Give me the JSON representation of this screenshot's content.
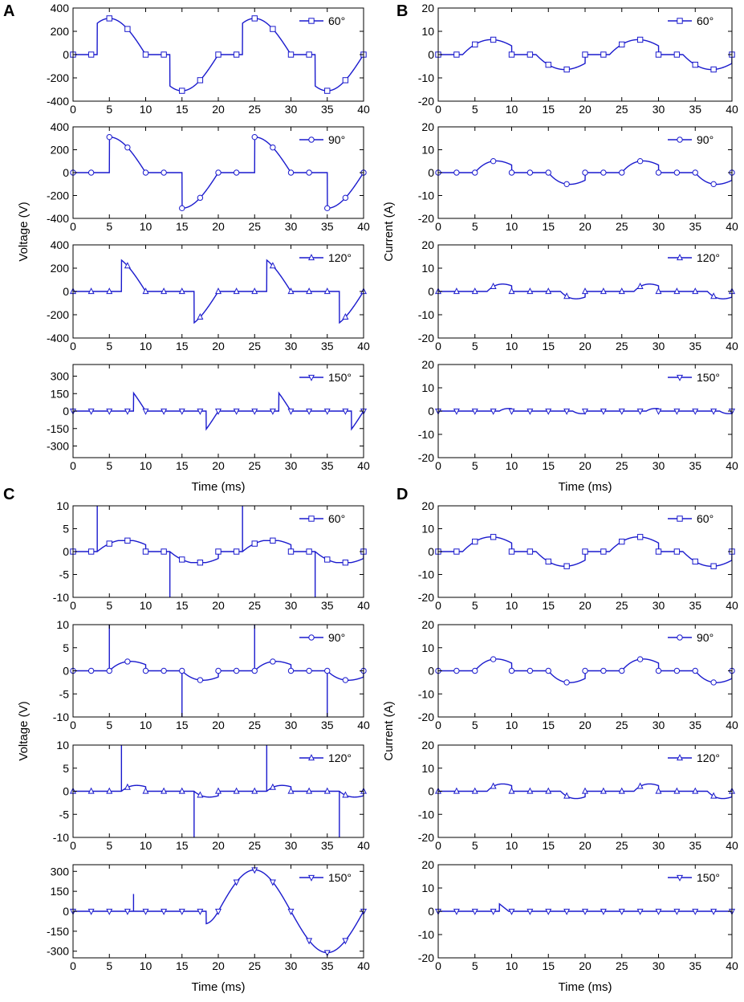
{
  "colors": {
    "series": "#1a1acd",
    "marker_fill": "#ffffff",
    "axis": "#000000"
  },
  "chart_data": [
    {
      "panel": "A",
      "type": "line",
      "quantity": "voltage",
      "column": "left",
      "ylabel": "Voltage (V)",
      "xlabel": "Time (ms)",
      "subplots": [
        {
          "legend": "60°",
          "marker": "square",
          "alpha": 60,
          "kind": "thyristor",
          "ylim": [
            -400,
            400
          ],
          "yticks": [
            -400,
            -200,
            0,
            200,
            400
          ],
          "xlim": [
            0,
            40
          ],
          "xticks": [
            0,
            5,
            10,
            15,
            20,
            25,
            30,
            35,
            40
          ]
        },
        {
          "legend": "90°",
          "marker": "circle",
          "alpha": 90,
          "kind": "thyristor",
          "ylim": [
            -400,
            400
          ],
          "yticks": [
            -400,
            -200,
            0,
            200,
            400
          ],
          "xlim": [
            0,
            40
          ],
          "xticks": [
            0,
            5,
            10,
            15,
            20,
            25,
            30,
            35,
            40
          ]
        },
        {
          "legend": "120°",
          "marker": "triangle-up",
          "alpha": 120,
          "kind": "thyristor",
          "ylim": [
            -400,
            400
          ],
          "yticks": [
            -400,
            -200,
            0,
            200,
            400
          ],
          "xlim": [
            0,
            40
          ],
          "xticks": [
            0,
            5,
            10,
            15,
            20,
            25,
            30,
            35,
            40
          ]
        },
        {
          "legend": "150°",
          "marker": "triangle-down",
          "alpha": 150,
          "kind": "thyristor",
          "ylim": [
            -400,
            400
          ],
          "yticks": [
            -300,
            -150,
            0,
            150,
            300
          ],
          "xlim": [
            0,
            40
          ],
          "xticks": [
            0,
            5,
            10,
            15,
            20,
            25,
            30,
            35,
            40
          ]
        }
      ]
    },
    {
      "panel": "B",
      "type": "line",
      "quantity": "current",
      "column": "right",
      "ylabel": "Current (A)",
      "xlabel": "Time (ms)",
      "subplots": [
        {
          "legend": "60°",
          "marker": "square",
          "alpha": 60,
          "kind": "current",
          "ylim": [
            -20,
            20
          ],
          "yticks": [
            -20,
            -10,
            0,
            10,
            20
          ],
          "xlim": [
            0,
            40
          ],
          "xticks": [
            0,
            5,
            10,
            15,
            20,
            25,
            30,
            35,
            40
          ]
        },
        {
          "legend": "90°",
          "marker": "circle",
          "alpha": 90,
          "kind": "current",
          "ylim": [
            -20,
            20
          ],
          "yticks": [
            -20,
            -10,
            0,
            10,
            20
          ],
          "xlim": [
            0,
            40
          ],
          "xticks": [
            0,
            5,
            10,
            15,
            20,
            25,
            30,
            35,
            40
          ]
        },
        {
          "legend": "120°",
          "marker": "triangle-up",
          "alpha": 120,
          "kind": "current",
          "ylim": [
            -20,
            20
          ],
          "yticks": [
            -20,
            -10,
            0,
            10,
            20
          ],
          "xlim": [
            0,
            40
          ],
          "xticks": [
            0,
            5,
            10,
            15,
            20,
            25,
            30,
            35,
            40
          ]
        },
        {
          "legend": "150°",
          "marker": "triangle-down",
          "alpha": 150,
          "kind": "current",
          "ylim": [
            -20,
            20
          ],
          "yticks": [
            -20,
            -10,
            0,
            10,
            20
          ],
          "xlim": [
            0,
            40
          ],
          "xticks": [
            0,
            5,
            10,
            15,
            20,
            25,
            30,
            35,
            40
          ]
        }
      ]
    },
    {
      "panel": "C",
      "type": "line",
      "quantity": "voltage",
      "column": "left",
      "ylabel": "Voltage (V)",
      "xlabel": "Time (ms)",
      "subplots": [
        {
          "legend": "60°",
          "marker": "square",
          "alpha": 60,
          "kind": "mosfet",
          "ylim": [
            -10,
            10
          ],
          "yticks": [
            -10,
            -5,
            0,
            5,
            10
          ],
          "xlim": [
            0,
            40
          ],
          "xticks": [
            0,
            5,
            10,
            15,
            20,
            25,
            30,
            35,
            40
          ]
        },
        {
          "legend": "90°",
          "marker": "circle",
          "alpha": 90,
          "kind": "mosfet",
          "ylim": [
            -10,
            10
          ],
          "yticks": [
            -10,
            -5,
            0,
            5,
            10
          ],
          "xlim": [
            0,
            40
          ],
          "xticks": [
            0,
            5,
            10,
            15,
            20,
            25,
            30,
            35,
            40
          ]
        },
        {
          "legend": "120°",
          "marker": "triangle-up",
          "alpha": 120,
          "kind": "mosfet",
          "ylim": [
            -10,
            10
          ],
          "yticks": [
            -10,
            -5,
            0,
            5,
            10
          ],
          "xlim": [
            0,
            40
          ],
          "xticks": [
            0,
            5,
            10,
            15,
            20,
            25,
            30,
            35,
            40
          ]
        },
        {
          "legend": "150°",
          "marker": "triangle-down",
          "alpha": 150,
          "kind": "mosfet150",
          "ylim": [
            -350,
            350
          ],
          "yticks": [
            -300,
            -150,
            0,
            150,
            300
          ],
          "xlim": [
            0,
            40
          ],
          "xticks": [
            0,
            5,
            10,
            15,
            20,
            25,
            30,
            35,
            40
          ]
        }
      ]
    },
    {
      "panel": "D",
      "type": "line",
      "quantity": "current",
      "column": "right",
      "ylabel": "Current (A)",
      "xlabel": "Time (ms)",
      "subplots": [
        {
          "legend": "60°",
          "marker": "square",
          "alpha": 60,
          "kind": "current",
          "ylim": [
            -20,
            20
          ],
          "yticks": [
            -20,
            -10,
            0,
            10,
            20
          ],
          "xlim": [
            0,
            40
          ],
          "xticks": [
            0,
            5,
            10,
            15,
            20,
            25,
            30,
            35,
            40
          ]
        },
        {
          "legend": "90°",
          "marker": "circle",
          "alpha": 90,
          "kind": "current",
          "ylim": [
            -20,
            20
          ],
          "yticks": [
            -20,
            -10,
            0,
            10,
            20
          ],
          "xlim": [
            0,
            40
          ],
          "xticks": [
            0,
            5,
            10,
            15,
            20,
            25,
            30,
            35,
            40
          ]
        },
        {
          "legend": "120°",
          "marker": "triangle-up",
          "alpha": 120,
          "kind": "current",
          "ylim": [
            -20,
            20
          ],
          "yticks": [
            -20,
            -10,
            0,
            10,
            20
          ],
          "xlim": [
            0,
            40
          ],
          "xticks": [
            0,
            5,
            10,
            15,
            20,
            25,
            30,
            35,
            40
          ]
        },
        {
          "legend": "150°",
          "marker": "triangle-down",
          "alpha": 150,
          "kind": "current150d",
          "ylim": [
            -20,
            20
          ],
          "yticks": [
            -20,
            -10,
            0,
            10,
            20
          ],
          "xlim": [
            0,
            40
          ],
          "xticks": [
            0,
            5,
            10,
            15,
            20,
            25,
            30,
            35,
            40
          ]
        }
      ]
    }
  ]
}
